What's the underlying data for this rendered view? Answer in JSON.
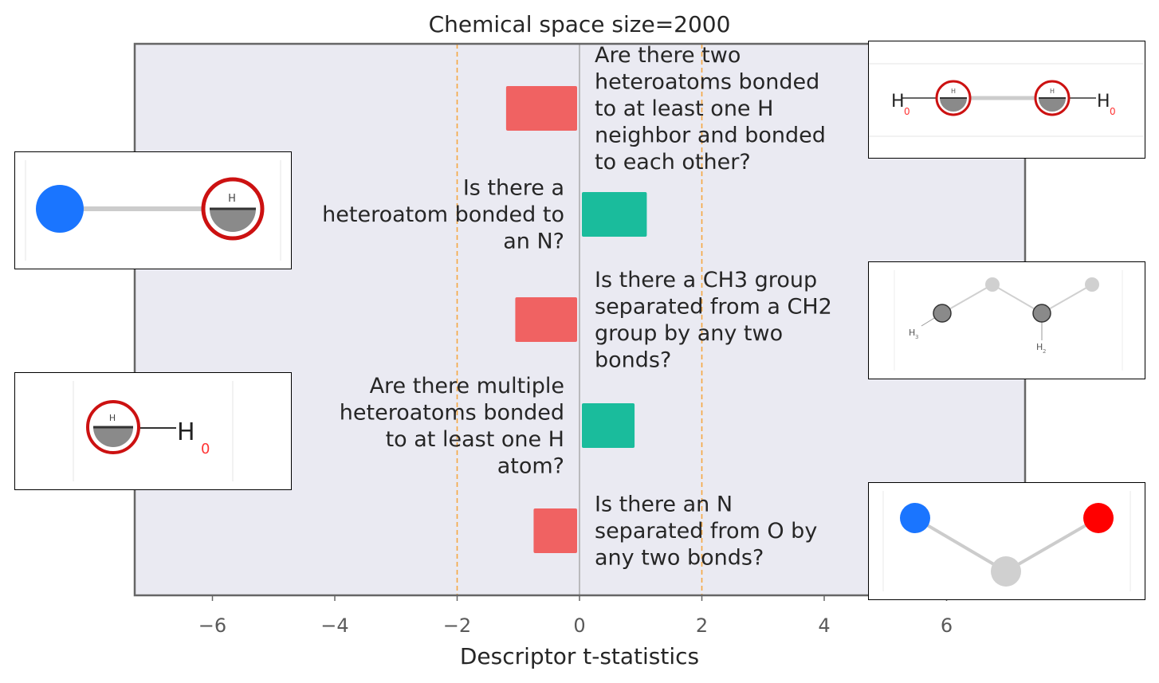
{
  "chart_data": {
    "type": "bar",
    "orientation": "horizontal",
    "title": "Chemical space size=2000",
    "xlabel": "Descriptor t-statistics",
    "ylabel": "",
    "xlim": [
      -7.3,
      7.3
    ],
    "xticks": [
      -6,
      -4,
      -2,
      0,
      2,
      4,
      6
    ],
    "xtick_labels": [
      "−6",
      "−4",
      "−2",
      "0",
      "2",
      "4",
      "6"
    ],
    "threshold_lines": [
      -2,
      2
    ],
    "bars": [
      {
        "label": "Are there two heteroatoms bonded to at least one H neighbor and bonded to each other?",
        "label_lines": [
          "Are there two",
          "heteroatoms bonded",
          "to at least one H",
          "neighbor and bonded",
          "to each other?"
        ],
        "value": -1.2,
        "color": "#f06262"
      },
      {
        "label": "Is there a heteroatom bonded to an N?",
        "label_lines": [
          "Is there a",
          "heteroatom bonded to",
          "an N?"
        ],
        "value": 1.1,
        "color": "#1abc9c"
      },
      {
        "label": "Is there a CH3 group separated from a CH2 group by any two bonds?",
        "label_lines": [
          "Is there a CH3 group",
          "separated from a CH2",
          "group by any two",
          "bonds?"
        ],
        "value": -1.05,
        "color": "#f06262"
      },
      {
        "label": "Are there multiple heteroatoms bonded to at least one H atom?",
        "label_lines": [
          "Are there multiple",
          "heteroatoms bonded",
          "to at least one H",
          "atom?"
        ],
        "value": 0.9,
        "color": "#1abc9c"
      },
      {
        "label": "Is there an N separated from O by any two bonds?",
        "label_lines": [
          "Is there an N",
          "separated from O by",
          "any two bonds?"
        ],
        "value": -0.75,
        "color": "#f06262"
      }
    ],
    "colors": {
      "negative": "#f06262",
      "positive": "#1abc9c",
      "threshold": "#f5a742",
      "plot_background": "#eaeaf2",
      "zero_line": "#999999",
      "frame": "#666666"
    }
  },
  "insets": {
    "mol_labels": {
      "h": "H",
      "zero": "0",
      "sub3": "3",
      "sub2": "2"
    },
    "colors": {
      "nitrogen": "#1a75ff",
      "oxygen": "#ff0000",
      "carbon": "#8a8a8a",
      "carbon_light": "#d0d0d0",
      "highlight_ring": "#cc1111",
      "zero_text": "#ff3333"
    }
  }
}
